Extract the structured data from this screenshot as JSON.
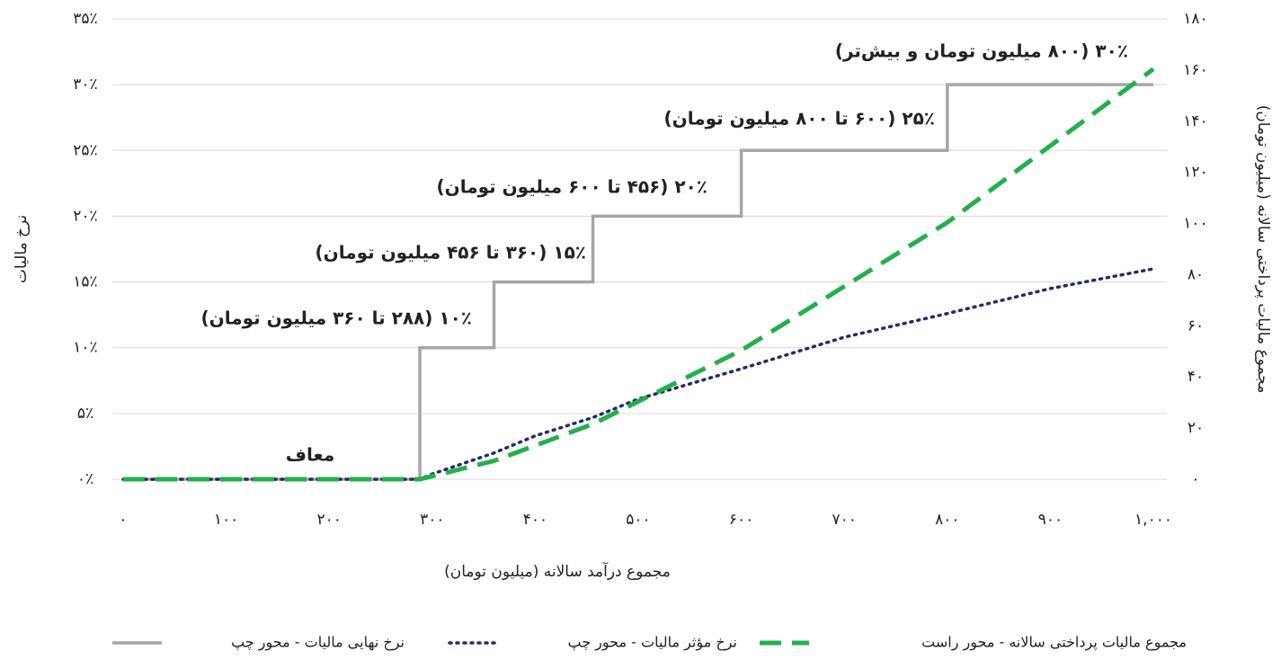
{
  "chart_data": {
    "type": "line",
    "x_label": "مجموع درآمد سالانه (میلیون تومان)",
    "y_label": "نرخ مالیات",
    "y2_label": "مجموع مالیات پرداختی سالانه (میلیون تومان)",
    "xlim": [
      0,
      1000
    ],
    "xticks": [
      {
        "value": 0,
        "label": "۰"
      },
      {
        "value": 100,
        "label": "۱۰۰"
      },
      {
        "value": 200,
        "label": "۲۰۰"
      },
      {
        "value": 300,
        "label": "۳۰۰"
      },
      {
        "value": 400,
        "label": "۴۰۰"
      },
      {
        "value": 500,
        "label": "۵۰۰"
      },
      {
        "value": 600,
        "label": "۶۰۰"
      },
      {
        "value": 700,
        "label": "۷۰۰"
      },
      {
        "value": 800,
        "label": "۸۰۰"
      },
      {
        "value": 900,
        "label": "۹۰۰"
      },
      {
        "value": 1000,
        "label": "۱,۰۰۰"
      }
    ],
    "ylim": [
      0,
      35
    ],
    "yticks": [
      {
        "value": 0,
        "label": "۰٪"
      },
      {
        "value": 5,
        "label": "۵٪"
      },
      {
        "value": 10,
        "label": "۱۰٪"
      },
      {
        "value": 15,
        "label": "۱۵٪"
      },
      {
        "value": 20,
        "label": "۲۰٪"
      },
      {
        "value": 25,
        "label": "۲۵٪"
      },
      {
        "value": 30,
        "label": "۳۰٪"
      },
      {
        "value": 35,
        "label": "۳۵٪"
      }
    ],
    "y2lim": [
      0,
      180
    ],
    "y2ticks": [
      {
        "value": 0,
        "label": "۰"
      },
      {
        "value": 20,
        "label": "۲۰"
      },
      {
        "value": 40,
        "label": "۴۰"
      },
      {
        "value": 60,
        "label": "۶۰"
      },
      {
        "value": 80,
        "label": "۸۰"
      },
      {
        "value": 100,
        "label": "۱۰۰"
      },
      {
        "value": 120,
        "label": "۱۲۰"
      },
      {
        "value": 140,
        "label": "۱۴۰"
      },
      {
        "value": 160,
        "label": "۱۶۰"
      },
      {
        "value": 180,
        "label": "۱۸۰"
      }
    ],
    "grid": true,
    "legend": "bottom",
    "series": [
      {
        "name": "نرخ نهایی مالیات - محور چپ",
        "color": "#a6a6a6",
        "style": "solid",
        "x": [
          0,
          288,
          288,
          360,
          360,
          456,
          456,
          600,
          600,
          800,
          800,
          1000
        ],
        "values": [
          0,
          0,
          10,
          10,
          15,
          15,
          20,
          20,
          25,
          25,
          30,
          30
        ]
      },
      {
        "name": "نرخ مؤثر مالیات - محور چپ",
        "color": "#1f2d6b",
        "style": "dotted",
        "x": [
          0,
          288,
          300,
          360,
          400,
          456,
          500,
          600,
          700,
          800,
          900,
          1000
        ],
        "values": [
          0,
          0,
          0.4,
          2.0,
          3.3,
          4.7,
          6.1,
          8.4,
          10.8,
          12.6,
          14.5,
          16.0
        ]
      },
      {
        "name": "مجموع مالیات پرداختی سالانه - محور راست",
        "color": "#22b04b",
        "style": "dashed",
        "axis": "y2",
        "x": [
          0,
          288,
          300,
          360,
          400,
          456,
          500,
          600,
          700,
          800,
          900,
          1000
        ],
        "values": [
          0,
          0,
          1.2,
          7.2,
          13.2,
          21.6,
          30.4,
          50.4,
          75.4,
          100.4,
          130.4,
          160.4
        ]
      }
    ],
    "annotations": [
      "معاف",
      "۱۰٪ (۲۸۸ تا ۳۶۰ میلیون تومان)",
      "۱۵٪ (۳۶۰ تا ۴۵۶ میلیون تومان)",
      "۲۰٪ (۴۵۶ تا ۶۰۰ میلیون تومان)",
      "۲۵٪ (۶۰۰ تا ۸۰۰ میلیون تومان)",
      "۳۰٪ (۸۰۰ میلیون تومان و بیش‌تر)"
    ]
  }
}
